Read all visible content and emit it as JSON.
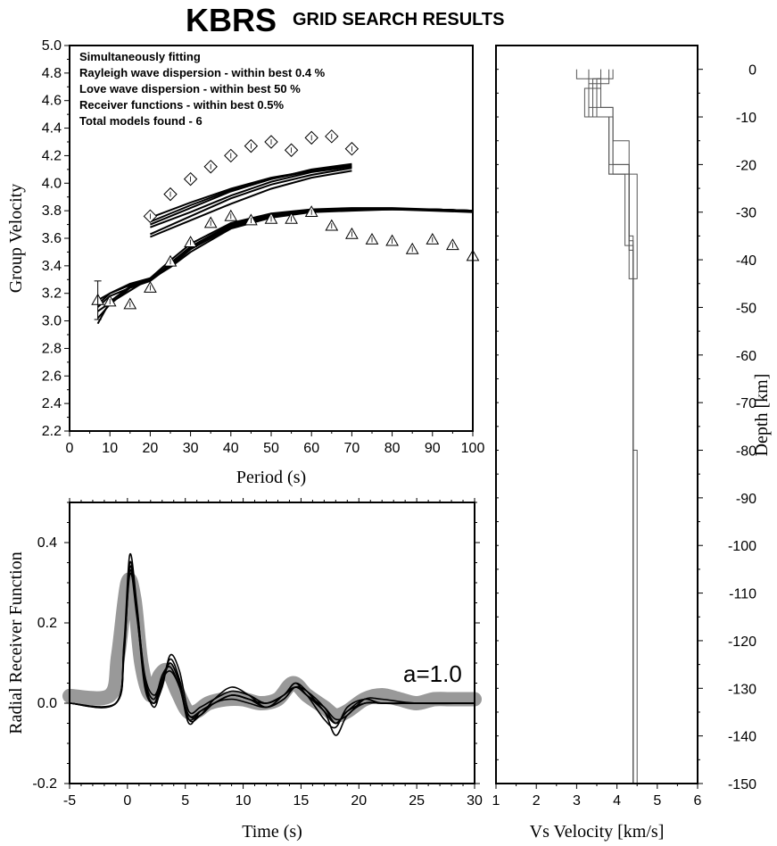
{
  "title": {
    "station": "KBRS",
    "subtitle": "GRID SEARCH RESULTS"
  },
  "annotations": [
    "Simultaneously fitting",
    "Rayleigh wave dispersion - within best 0.4 %",
    "Love wave dispersion - within best 50 %",
    "Receiver functions - within best 0.5%",
    "Total models found - 6"
  ],
  "chart_data": [
    {
      "id": "dispersion",
      "type": "scatter",
      "xlabel": "Period (s)",
      "ylabel": "Group Velocity",
      "xlim": [
        0,
        100
      ],
      "ylim": [
        2.2,
        5.0
      ],
      "xticks": [
        "0",
        "10",
        "20",
        "30",
        "40",
        "50",
        "60",
        "70",
        "80",
        "90",
        "100"
      ],
      "yticks": [
        "2.2",
        "2.4",
        "2.6",
        "2.8",
        "3.0",
        "3.2",
        "3.4",
        "3.6",
        "3.8",
        "4.0",
        "4.2",
        "4.4",
        "4.6",
        "4.8",
        "5.0"
      ],
      "series": [
        {
          "marker": "diamond",
          "x": [
            20,
            25,
            30,
            35,
            40,
            45,
            50,
            55,
            60,
            65,
            70
          ],
          "y": [
            3.76,
            3.92,
            4.03,
            4.12,
            4.2,
            4.27,
            4.3,
            4.24,
            4.33,
            4.34,
            4.25
          ]
        },
        {
          "marker": "triangle",
          "x": [
            7,
            10,
            15,
            20,
            25,
            30,
            35,
            40,
            45,
            50,
            55,
            60,
            65,
            70,
            75,
            80,
            85,
            90,
            95,
            100
          ],
          "y": [
            3.15,
            3.14,
            3.12,
            3.24,
            3.43,
            3.57,
            3.71,
            3.76,
            3.73,
            3.74,
            3.74,
            3.79,
            3.69,
            3.63,
            3.59,
            3.58,
            3.52,
            3.59,
            3.55,
            3.47
          ]
        },
        {
          "marker": "line",
          "group": "love-predicted",
          "curves": [
            {
              "x": [
                20,
                30,
                40,
                50,
                60,
                70
              ],
              "y": [
                3.75,
                3.86,
                3.96,
                4.04,
                4.09,
                4.12
              ]
            },
            {
              "x": [
                20,
                30,
                40,
                50,
                60,
                70
              ],
              "y": [
                3.72,
                3.84,
                3.95,
                4.03,
                4.09,
                4.13
              ]
            },
            {
              "x": [
                20,
                30,
                40,
                50,
                60,
                70
              ],
              "y": [
                3.7,
                3.82,
                3.94,
                4.03,
                4.1,
                4.14
              ]
            },
            {
              "x": [
                20,
                30,
                40,
                50,
                60,
                70
              ],
              "y": [
                3.68,
                3.79,
                3.91,
                4.01,
                4.08,
                4.12
              ]
            },
            {
              "x": [
                20,
                30,
                40,
                50,
                60,
                70
              ],
              "y": [
                3.63,
                3.76,
                3.89,
                3.99,
                4.06,
                4.11
              ]
            },
            {
              "x": [
                20,
                30,
                40,
                50,
                60,
                70
              ],
              "y": [
                3.61,
                3.73,
                3.85,
                3.96,
                4.04,
                4.09
              ]
            }
          ]
        },
        {
          "marker": "line",
          "group": "rayleigh-predicted",
          "curves": [
            {
              "x": [
                7,
                10,
                15,
                20,
                25,
                30,
                40,
                50,
                60,
                70,
                80,
                90,
                100
              ],
              "y": [
                2.98,
                3.14,
                3.25,
                3.3,
                3.4,
                3.52,
                3.68,
                3.76,
                3.8,
                3.81,
                3.81,
                3.81,
                3.8
              ]
            },
            {
              "x": [
                7,
                10,
                15,
                20,
                25,
                30,
                40,
                50,
                60,
                70,
                80,
                90,
                100
              ],
              "y": [
                3.02,
                3.12,
                3.24,
                3.3,
                3.42,
                3.54,
                3.7,
                3.77,
                3.8,
                3.81,
                3.81,
                3.81,
                3.8
              ]
            },
            {
              "x": [
                7,
                10,
                15,
                20,
                25,
                30,
                40,
                50,
                60,
                70,
                80,
                90,
                100
              ],
              "y": [
                3.07,
                3.13,
                3.22,
                3.31,
                3.44,
                3.56,
                3.71,
                3.78,
                3.81,
                3.82,
                3.82,
                3.81,
                3.8
              ]
            },
            {
              "x": [
                7,
                10,
                15,
                20,
                25,
                30,
                40,
                50,
                60,
                70,
                80,
                90,
                100
              ],
              "y": [
                3.1,
                3.18,
                3.24,
                3.29,
                3.4,
                3.52,
                3.68,
                3.76,
                3.8,
                3.81,
                3.81,
                3.81,
                3.8
              ]
            },
            {
              "x": [
                7,
                10,
                15,
                20,
                25,
                30,
                40,
                50,
                60,
                70,
                80,
                90,
                100
              ],
              "y": [
                3.12,
                3.2,
                3.26,
                3.3,
                3.39,
                3.5,
                3.67,
                3.75,
                3.79,
                3.8,
                3.81,
                3.81,
                3.8
              ]
            },
            {
              "x": [
                7,
                10,
                15,
                20,
                25,
                30,
                40,
                50,
                60,
                70,
                80,
                90,
                100
              ],
              "y": [
                3.15,
                3.2,
                3.27,
                3.31,
                3.41,
                3.53,
                3.69,
                3.77,
                3.8,
                3.81,
                3.81,
                3.8,
                3.79
              ]
            }
          ]
        }
      ]
    },
    {
      "id": "receiver-function",
      "type": "line",
      "xlabel": "Time (s)",
      "ylabel": "Radial Receiver Function",
      "label": "a=1.0",
      "xlim": [
        -5,
        30
      ],
      "ylim": [
        -0.2,
        0.5
      ],
      "xticks": [
        "-5",
        "0",
        "5",
        "10",
        "15",
        "20",
        "25",
        "30"
      ],
      "yticks": [
        "-0.2",
        "0.0",
        "0.2",
        "0.4"
      ],
      "series": [
        {
          "style": "observed-band",
          "x": [
            -5,
            -1.5,
            -0.8,
            0,
            0.6,
            1.2,
            2,
            2.8,
            3.5,
            4.3,
            5.2,
            6,
            7,
            8.5,
            10,
            11.5,
            13,
            14.3,
            15.5,
            17,
            18,
            19,
            20.5,
            22,
            23.5,
            25,
            26.5,
            28,
            30
          ],
          "y": [
            0.018,
            0.02,
            0.12,
            0.3,
            0.26,
            0.1,
            0.02,
            0.07,
            0.08,
            0.03,
            -0.02,
            -0.02,
            0.0,
            0.01,
            0.01,
            0.0,
            0.01,
            0.05,
            0.02,
            -0.01,
            -0.03,
            -0.02,
            0.01,
            0.02,
            0.01,
            0.0,
            0.01,
            0.01,
            0.01
          ]
        },
        {
          "style": "predicted",
          "curves": [
            {
              "x": [
                -5,
                -1,
                -0.3,
                0.2,
                0.8,
                1.5,
                2.3,
                3.0,
                3.7,
                4.5,
                5.3,
                6.3,
                7.5,
                9,
                10.5,
                12,
                13.5,
                14.5,
                15.5,
                17,
                18,
                19,
                20.5,
                22,
                25,
                30
              ],
              "y": [
                0,
                0,
                0.15,
                0.37,
                0.25,
                0.06,
                -0.01,
                0.05,
                0.11,
                0.06,
                -0.04,
                -0.03,
                0.01,
                0.04,
                0.02,
                -0.01,
                0.02,
                0.04,
                0.02,
                -0.04,
                -0.06,
                -0.01,
                0.01,
                0.0,
                0.0,
                0
              ]
            },
            {
              "x": [
                -5,
                -1,
                -0.3,
                0.2,
                0.8,
                1.5,
                2.3,
                3.0,
                3.7,
                4.5,
                5.3,
                6.3,
                7.5,
                9,
                10.5,
                12,
                13.5,
                14.5,
                15.5,
                17,
                18,
                19,
                20.5,
                22,
                25,
                30
              ],
              "y": [
                0,
                0,
                0.13,
                0.35,
                0.24,
                0.05,
                0.0,
                0.06,
                0.1,
                0.05,
                -0.05,
                -0.02,
                0.0,
                0.02,
                0.01,
                0.0,
                0.02,
                0.05,
                0.03,
                -0.02,
                -0.05,
                -0.02,
                0.0,
                0.0,
                0.0,
                0
              ]
            },
            {
              "x": [
                -5,
                -1,
                -0.3,
                0.2,
                0.8,
                1.5,
                2.3,
                3.0,
                3.7,
                4.5,
                5.3,
                6.3,
                7.5,
                9,
                10.5,
                12,
                13.5,
                14.5,
                15.5,
                17,
                18,
                19,
                20.5,
                22,
                25,
                30
              ],
              "y": [
                0,
                0,
                0.12,
                0.33,
                0.22,
                0.06,
                0.01,
                0.07,
                0.09,
                0.04,
                -0.03,
                -0.03,
                0.0,
                0.01,
                0.0,
                -0.01,
                0.01,
                0.04,
                0.02,
                -0.01,
                -0.04,
                -0.03,
                0.01,
                0.01,
                0.0,
                0
              ]
            },
            {
              "x": [
                -5,
                -1,
                -0.3,
                0.2,
                0.8,
                1.5,
                2.3,
                3.0,
                3.7,
                4.5,
                5.3,
                6.3,
                7.5,
                9,
                10.5,
                12,
                13.5,
                14.5,
                15.5,
                17,
                18,
                19,
                20.5,
                22,
                25,
                30
              ],
              "y": [
                0,
                0,
                0.14,
                0.34,
                0.23,
                0.04,
                0.0,
                0.04,
                0.12,
                0.08,
                -0.02,
                -0.01,
                0.01,
                0.03,
                0.02,
                0.0,
                0.02,
                0.05,
                0.02,
                -0.02,
                -0.08,
                -0.03,
                0.0,
                0.0,
                0.0,
                0
              ]
            },
            {
              "x": [
                -5,
                -1,
                -0.3,
                0.2,
                0.8,
                1.5,
                2.3,
                3.0,
                3.7,
                4.5,
                5.3,
                6.3,
                7.5,
                9,
                10.5,
                12,
                13.5,
                14.5,
                15.5,
                17,
                18,
                19,
                20.5,
                22,
                25,
                30
              ],
              "y": [
                0,
                0,
                0.13,
                0.32,
                0.24,
                0.07,
                0.02,
                0.06,
                0.08,
                0.04,
                -0.04,
                -0.02,
                0.0,
                0.02,
                0.01,
                -0.01,
                0.01,
                0.04,
                0.03,
                -0.01,
                -0.05,
                -0.02,
                0.01,
                0.0,
                0.0,
                0
              ]
            },
            {
              "x": [
                -5,
                -1,
                -0.3,
                0.2,
                0.8,
                1.5,
                2.3,
                3.0,
                3.7,
                4.5,
                5.3,
                6.3,
                7.5,
                9,
                10.5,
                12,
                13.5,
                14.5,
                15.5,
                17,
                18,
                19,
                20.5,
                22,
                25,
                30
              ],
              "y": [
                0,
                0,
                0.14,
                0.34,
                0.23,
                0.05,
                0.0,
                0.05,
                0.1,
                0.05,
                -0.03,
                -0.02,
                0.0,
                0.02,
                0.01,
                0.0,
                0.02,
                0.04,
                0.02,
                -0.02,
                -0.05,
                -0.02,
                0.0,
                0.0,
                0.0,
                0
              ]
            }
          ]
        }
      ]
    },
    {
      "id": "velocity-model",
      "type": "line",
      "xlabel": "Vs Velocity [km/s]",
      "ylabel": "Depth [km]",
      "xlim": [
        1,
        6
      ],
      "ylim": [
        -150,
        5
      ],
      "xticks": [
        "1",
        "2",
        "3",
        "4",
        "5",
        "6"
      ],
      "yticks": [
        "0",
        "-10",
        "-20",
        "-30",
        "-40",
        "-50",
        "-60",
        "-70",
        "-80",
        "-90",
        "-100",
        "-110",
        "-120",
        "-130",
        "-140",
        "-150"
      ],
      "models": [
        {
          "vs": [
            3.0,
            3.3,
            3.8,
            4.3,
            4.4,
            4.4
          ],
          "depth_bottom": [
            2,
            10,
            22,
            36,
            80,
            150
          ]
        },
        {
          "vs": [
            3.3,
            3.6,
            3.9,
            4.3,
            4.4,
            4.4
          ],
          "depth_bottom": [
            2,
            8,
            20,
            38,
            80,
            150
          ]
        },
        {
          "vs": [
            3.6,
            3.2,
            3.8,
            4.3,
            4.4,
            4.4
          ],
          "depth_bottom": [
            4,
            10,
            20,
            35,
            80,
            150
          ]
        },
        {
          "vs": [
            3.8,
            3.3,
            3.9,
            4.3,
            4.4,
            4.5
          ],
          "depth_bottom": [
            3,
            8,
            15,
            44,
            80,
            150
          ]
        },
        {
          "vs": [
            3.6,
            3.4,
            3.8,
            4.5,
            4.4,
            4.4
          ],
          "depth_bottom": [
            2,
            10,
            22,
            44,
            80,
            150
          ]
        },
        {
          "vs": [
            3.9,
            3.5,
            3.9,
            4.2,
            4.4,
            4.4
          ],
          "depth_bottom": [
            2,
            10,
            22,
            37,
            80,
            150
          ]
        }
      ]
    }
  ]
}
